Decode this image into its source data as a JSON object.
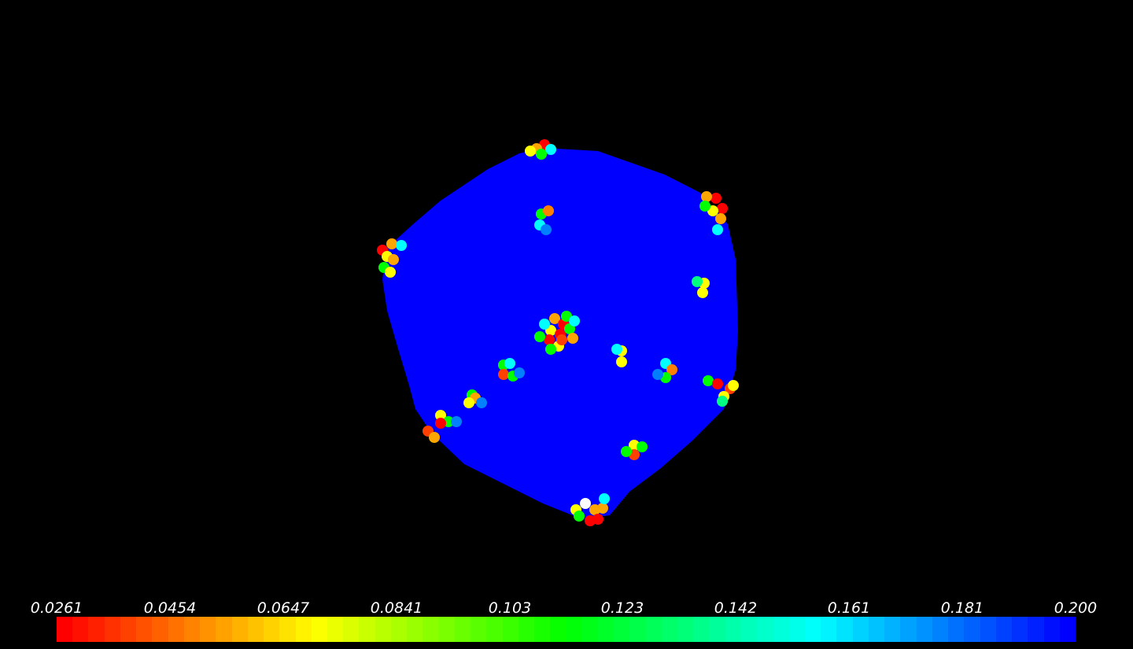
{
  "colormap": {
    "name": "rainbow",
    "colors": [
      "#ff0000",
      "#ffff00",
      "#00ff00",
      "#00ffff",
      "#0000ff"
    ]
  },
  "scene": {
    "background": "#000000",
    "object": "particle cluster",
    "dominant_color": "#0000ff"
  },
  "colorbar": {
    "min": 0.0261,
    "max": 0.2,
    "segments": 64,
    "tick_labels": [
      "0.0261",
      "0.0454",
      "0.0647",
      "0.0841",
      "0.103",
      "0.123",
      "0.142",
      "0.161",
      "0.181",
      "0.200"
    ]
  }
}
